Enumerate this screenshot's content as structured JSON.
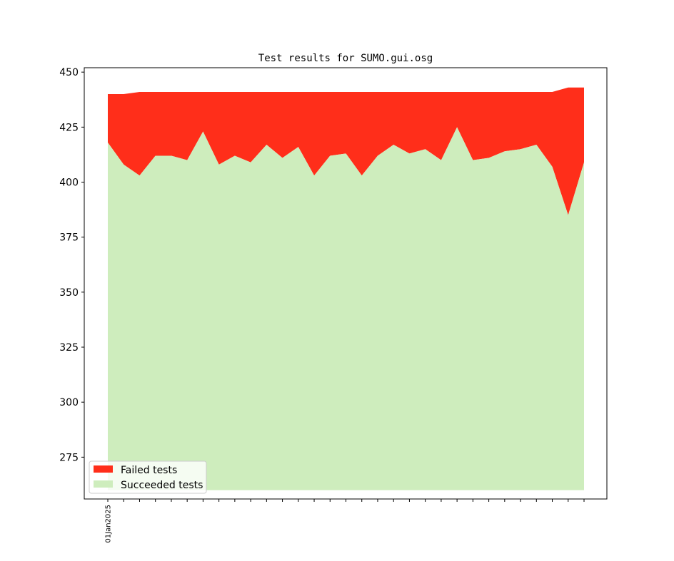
{
  "chart_data": {
    "type": "area",
    "title": "Test results for SUMO.gui.osg",
    "xlabel": "",
    "ylabel": "",
    "ylim": [
      256,
      452
    ],
    "yticks": [
      275,
      300,
      325,
      350,
      375,
      400,
      425,
      450
    ],
    "x_tick_labels": [
      "01Jan2025",
      "",
      "",
      "",
      "",
      "",
      "",
      "",
      "",
      "",
      "",
      "",
      "",
      "",
      "",
      "",
      "",
      "",
      "",
      "",
      "",
      "",
      "",
      "",
      "",
      "",
      "",
      "",
      "",
      "",
      ""
    ],
    "baseline": 260,
    "series": [
      {
        "name": "Failed tests",
        "color": "#ff2e1a",
        "values": [
          22,
          32,
          38,
          29,
          29,
          31,
          18,
          33,
          29,
          32,
          24,
          30,
          25,
          38,
          29,
          28,
          38,
          29,
          24,
          28,
          26,
          31,
          16,
          31,
          30,
          27,
          26,
          24,
          34,
          58,
          34
        ]
      },
      {
        "name": "Succeeded tests",
        "color": "#ceedbd",
        "values": [
          418,
          408,
          403,
          412,
          412,
          410,
          423,
          408,
          412,
          409,
          417,
          411,
          416,
          403,
          412,
          413,
          403,
          412,
          417,
          413,
          415,
          410,
          425,
          410,
          411,
          414,
          415,
          417,
          407,
          385,
          409
        ]
      }
    ],
    "legend": "lower-left",
    "grid": false
  }
}
